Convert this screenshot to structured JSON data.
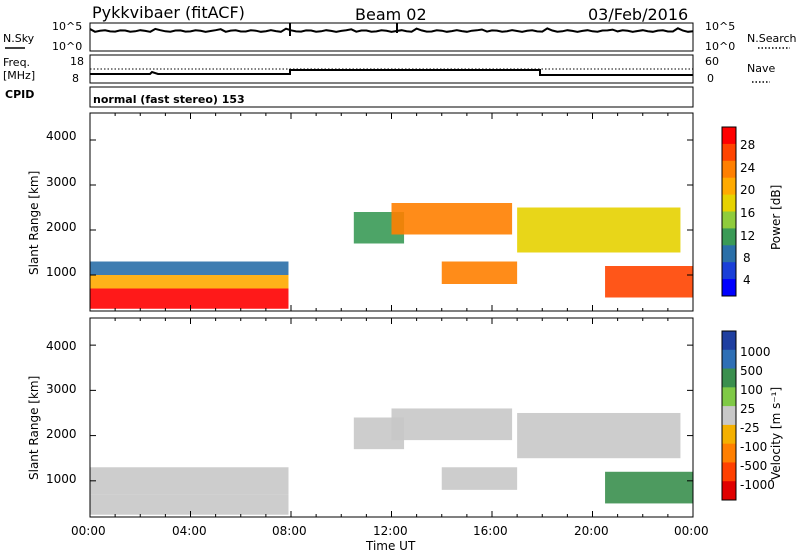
{
  "header": {
    "station": "Pykkvibaer (fitACF)",
    "beam": "Beam 02",
    "date": "03/Feb/2016"
  },
  "noise_panel": {
    "left_label": "N.Sky",
    "right_label": "N.Search",
    "left_ticks": [
      "10^5",
      "10^0"
    ],
    "right_ticks": [
      "10^5",
      "10^0"
    ]
  },
  "freq_panel": {
    "left_label_1": "Freq.",
    "left_label_2": "[MHz]",
    "right_label": "Nave",
    "left_ticks": [
      "18",
      "8"
    ],
    "right_ticks": [
      "60",
      "0"
    ],
    "cpid_label": "CPID"
  },
  "cpid_text": "normal (fast stereo) 153",
  "power_panel": {
    "ylabel": "Slant Range [km]",
    "yticks": [
      "4000",
      "3000",
      "2000",
      "1000"
    ],
    "colorbar_title": "Power [dB]",
    "colorbar_labels": [
      "28",
      "24",
      "20",
      "16",
      "12",
      "8",
      "4"
    ],
    "colors": [
      "#ff0000",
      "#ff4400",
      "#ff7f00",
      "#ffaa00",
      "#e6d200",
      "#8fcc3c",
      "#3a9a56",
      "#2a6fa8",
      "#1a3fd8",
      "#0000ff"
    ]
  },
  "velocity_panel": {
    "ylabel": "Slant Range [km]",
    "yticks": [
      "4000",
      "3000",
      "2000",
      "1000"
    ],
    "colorbar_title": "Velocity [m s⁻¹]",
    "colorbar_labels": [
      "1000",
      "500",
      "100",
      "25",
      "-25",
      "-100",
      "-500",
      "-1000"
    ],
    "colors": [
      "#1f3fa0",
      "#2e6fb5",
      "#3a8f4e",
      "#7fc946",
      "#c8c8c8",
      "#f4b000",
      "#ff7f00",
      "#ff4000",
      "#e00000"
    ]
  },
  "xaxis": {
    "ticks": [
      "00:00",
      "04:00",
      "08:00",
      "12:00",
      "16:00",
      "20:00",
      "00:00"
    ],
    "label": "Time UT"
  },
  "chart_data": [
    {
      "type": "heatmap",
      "title": "Power",
      "xlabel": "Time UT",
      "ylabel": "Slant Range [km]",
      "xlim": [
        0,
        24
      ],
      "ylim": [
        200,
        4600
      ],
      "colorbar": {
        "label": "Power [dB]",
        "range": [
          0,
          30
        ]
      },
      "regions": [
        {
          "t": [
            0.0,
            7.9
          ],
          "r": [
            250,
            700
          ],
          "value": 28
        },
        {
          "t": [
            0.0,
            7.9
          ],
          "r": [
            700,
            1000
          ],
          "value": 20
        },
        {
          "t": [
            0.0,
            7.9
          ],
          "r": [
            1000,
            1300
          ],
          "value": 8
        },
        {
          "t": [
            10.5,
            12.5
          ],
          "r": [
            1700,
            2400
          ],
          "value": 10
        },
        {
          "t": [
            12.0,
            16.8
          ],
          "r": [
            1900,
            2600
          ],
          "value": 22
        },
        {
          "t": [
            14.0,
            17.0
          ],
          "r": [
            800,
            1300
          ],
          "value": 24
        },
        {
          "t": [
            17.0,
            23.5
          ],
          "r": [
            1500,
            2500
          ],
          "value": 16
        },
        {
          "t": [
            20.5,
            24.0
          ],
          "r": [
            500,
            1200
          ],
          "value": 27
        }
      ]
    },
    {
      "type": "heatmap",
      "title": "Velocity",
      "xlabel": "Time UT",
      "ylabel": "Slant Range [km]",
      "xlim": [
        0,
        24
      ],
      "ylim": [
        200,
        4600
      ],
      "colorbar": {
        "label": "Velocity [m s⁻¹]",
        "range": [
          -1000,
          1000
        ]
      },
      "regions": [
        {
          "t": [
            0.0,
            7.9
          ],
          "r": [
            250,
            700
          ],
          "value": -100
        },
        {
          "t": [
            0.0,
            7.9
          ],
          "r": [
            700,
            1300
          ],
          "value": 0
        },
        {
          "t": [
            10.5,
            12.5
          ],
          "r": [
            1700,
            2400
          ],
          "value": 0
        },
        {
          "t": [
            12.0,
            16.8
          ],
          "r": [
            1900,
            2600
          ],
          "value": 0
        },
        {
          "t": [
            14.0,
            17.0
          ],
          "r": [
            800,
            1300
          ],
          "value": 100
        },
        {
          "t": [
            17.0,
            23.5
          ],
          "r": [
            1500,
            2500
          ],
          "value": 0
        },
        {
          "t": [
            20.5,
            24.0
          ],
          "r": [
            500,
            1200
          ],
          "value": 500
        }
      ]
    }
  ]
}
